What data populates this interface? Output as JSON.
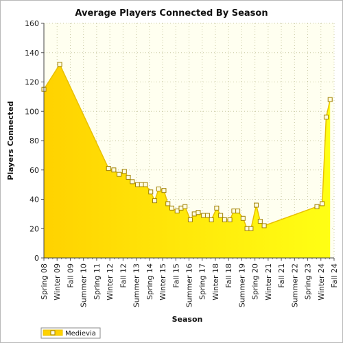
{
  "chart_data": {
    "type": "area",
    "title": "Average Players Connected By Season",
    "xlabel": "Season",
    "ylabel": "Players Connected",
    "ylim": [
      0,
      160
    ],
    "yticks": [
      0,
      20,
      40,
      60,
      80,
      100,
      120,
      140,
      160
    ],
    "grid": true,
    "legend_position": "bottom-left",
    "colors": {
      "fill": "#ffd200",
      "fill_light": "#ffff14",
      "stroke": "#e8c000",
      "marker_fill": "#fffce0",
      "marker_stroke": "#a08000",
      "plot_bg": "#fffff0",
      "grid": "#c8c8a0"
    },
    "categories": [
      "Spring 08",
      "Winter 09",
      "Fall 09",
      "Summer 10",
      "Spring 11",
      "Winter 12",
      "Fall 12",
      "Summer 13",
      "Spring 14",
      "Winter 15",
      "Fall 15",
      "Summer 16",
      "Spring 17",
      "Winter 18",
      "Fall 18",
      "Summer 19",
      "Spring 20",
      "Winter 21",
      "Fall 21",
      "Summer 22",
      "Spring 23",
      "Winter 24",
      "Fall 24"
    ],
    "series": [
      {
        "name": "Medievia",
        "x": [
          0,
          1.2,
          4.9,
          5.3,
          5.7,
          6.1,
          6.4,
          6.7,
          7.1,
          7.4,
          7.7,
          8.1,
          8.4,
          8.7,
          9.1,
          9.4,
          9.7,
          10.1,
          10.4,
          10.7,
          11.1,
          11.4,
          11.7,
          12.1,
          12.4,
          12.7,
          13.1,
          13.4,
          13.7,
          14.1,
          14.4,
          14.7,
          15.1,
          15.4,
          15.7,
          16.1,
          16.4,
          16.7,
          20.7,
          21.1,
          21.4,
          21.7
        ],
        "values": [
          115,
          132,
          61,
          60,
          57,
          59,
          55,
          52,
          50,
          50,
          50,
          45,
          39,
          47,
          46,
          37,
          34,
          32,
          34,
          35,
          26,
          30,
          31,
          29,
          29,
          26,
          34,
          29,
          26,
          26,
          32,
          32,
          27,
          20,
          20,
          36,
          25,
          22,
          35,
          37,
          96,
          108
        ]
      }
    ]
  }
}
